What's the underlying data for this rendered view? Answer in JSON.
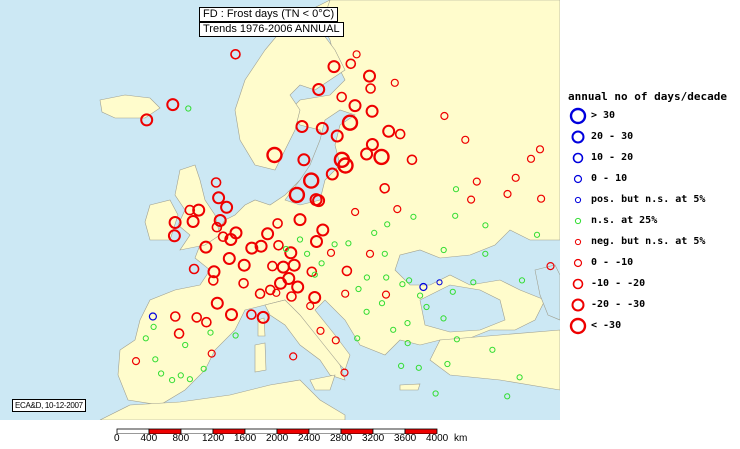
{
  "title": {
    "line1": "FD : Frost days (TN < 0°C)",
    "line2": "Trends 1976-2006 ANNUAL"
  },
  "credit": "ECA&D, 10-12-2007",
  "colors": {
    "sea": "#cce8f4",
    "land": "#fffccc",
    "border": "#b8b8a0",
    "positive": "#0000dd",
    "ns": "#33dd33",
    "negative": "#ee0000"
  },
  "legend": {
    "title": "annual no of days/decade",
    "items": [
      {
        "label": "> 30",
        "color": "#0000dd",
        "size": 6
      },
      {
        "label": "20 - 30",
        "color": "#0000dd",
        "size": 5
      },
      {
        "label": "10 - 20",
        "color": "#0000dd",
        "size": 4
      },
      {
        "label": "0 - 10",
        "color": "#0000dd",
        "size": 3
      },
      {
        "label": "pos. but n.s. at 5%",
        "color": "#0000dd",
        "size": 2
      },
      {
        "label": "n.s. at 25%",
        "color": "#33dd33",
        "size": 2
      },
      {
        "label": "neg. but n.s. at 5%",
        "color": "#ee0000",
        "size": 2
      },
      {
        "label": "0 - -10",
        "color": "#ee0000",
        "size": 3
      },
      {
        "label": "-10 - -20",
        "color": "#ee0000",
        "size": 4
      },
      {
        "label": "-20 - -30",
        "color": "#ee0000",
        "size": 5
      },
      {
        "label": "< -30",
        "color": "#ee0000",
        "size": 6
      }
    ]
  },
  "scale": {
    "labels": [
      "0",
      "400",
      "800",
      "1200",
      "1600",
      "2000",
      "2400",
      "2800",
      "3200",
      "3600",
      "4000"
    ],
    "unit": "km"
  },
  "stations": [
    [
      -21.9,
      64.1,
      9
    ],
    [
      -18.1,
      65.7,
      9
    ],
    [
      -14.3,
      65.3,
      6
    ],
    [
      -8,
      71,
      8
    ],
    [
      -6.3,
      53.4,
      9
    ],
    [
      -8.5,
      51.9,
      9
    ],
    [
      -9,
      53.3,
      9
    ],
    [
      -7.3,
      54.6,
      8
    ],
    [
      -3.2,
      55.9,
      9
    ],
    [
      -4.2,
      57.5,
      8
    ],
    [
      -1.6,
      54.9,
      9
    ],
    [
      -2.2,
      53.5,
      9
    ],
    [
      -0.1,
      51.5,
      9
    ],
    [
      -3.5,
      50.7,
      9
    ],
    [
      -1.3,
      51.8,
      8
    ],
    [
      0.5,
      52.2,
      9
    ],
    [
      -5.9,
      54.6,
      9
    ],
    [
      -2.5,
      52.8,
      8
    ],
    [
      2.3,
      48.8,
      9
    ],
    [
      -1.7,
      48.1,
      9
    ],
    [
      -4.5,
      48.4,
      8
    ],
    [
      0.1,
      49.5,
      9
    ],
    [
      4.8,
      45.8,
      8
    ],
    [
      5.4,
      43.3,
      9
    ],
    [
      1.4,
      43.6,
      9
    ],
    [
      -0.6,
      44.8,
      9
    ],
    [
      3.1,
      50.6,
      9
    ],
    [
      7.7,
      48.6,
      9
    ],
    [
      6.2,
      48.7,
      8
    ],
    [
      2.5,
      46.9,
      8
    ],
    [
      -1.6,
      47.2,
      8
    ],
    [
      6.9,
      45.9,
      7
    ],
    [
      3.9,
      43.6,
      8
    ],
    [
      4.4,
      50.8,
      9
    ],
    [
      5.2,
      52.1,
      9
    ],
    [
      6.6,
      53.2,
      8
    ],
    [
      8.7,
      50.1,
      9
    ],
    [
      13.4,
      52.5,
      9
    ],
    [
      10,
      53.6,
      9
    ],
    [
      11.6,
      48.1,
      8
    ],
    [
      9.2,
      48.8,
      9
    ],
    [
      6.9,
      50.9,
      8
    ],
    [
      12.4,
      51.3,
      9
    ],
    [
      14.4,
      50.1,
      7
    ],
    [
      16.4,
      48.2,
      8
    ],
    [
      12,
      47.8,
      6
    ],
    [
      10,
      51.5,
      6
    ],
    [
      8,
      50.5,
      6
    ],
    [
      11,
      50,
      6
    ],
    [
      15,
      51,
      6
    ],
    [
      13,
      49,
      6
    ],
    [
      8.5,
      47.4,
      9
    ],
    [
      7.4,
      46.9,
      9
    ],
    [
      6.1,
      46.2,
      8
    ],
    [
      9.7,
      46.5,
      9
    ],
    [
      8.9,
      45.5,
      8
    ],
    [
      11.3,
      44.5,
      7
    ],
    [
      12.5,
      41.9,
      7
    ],
    [
      14.3,
      40.9,
      7
    ],
    [
      16.9,
      41.1,
      6
    ],
    [
      15.1,
      37.5,
      7
    ],
    [
      9.2,
      39.2,
      7
    ],
    [
      11.9,
      45.4,
      9
    ],
    [
      10.7,
      59.9,
      9
    ],
    [
      5.3,
      60.4,
      10
    ],
    [
      10.4,
      63.4,
      9
    ],
    [
      14.4,
      67.3,
      9
    ],
    [
      18.9,
      69.7,
      9
    ],
    [
      23.5,
      70,
      8
    ],
    [
      25.8,
      71,
      7
    ],
    [
      18.1,
      59.3,
      10
    ],
    [
      11.9,
      57.7,
      10
    ],
    [
      13,
      55.6,
      9
    ],
    [
      17.6,
      59.9,
      10
    ],
    [
      15.6,
      58.4,
      9
    ],
    [
      20.3,
      63.8,
      10
    ],
    [
      22.1,
      65.6,
      9
    ],
    [
      17.3,
      62.4,
      9
    ],
    [
      14.5,
      63.2,
      9
    ],
    [
      19.5,
      66.5,
      8
    ],
    [
      24.9,
      60.2,
      10
    ],
    [
      22.3,
      60.5,
      9
    ],
    [
      25.5,
      65,
      9
    ],
    [
      27.7,
      62.9,
      9
    ],
    [
      26.7,
      67.4,
      8
    ],
    [
      29.8,
      62.6,
      8
    ],
    [
      23.8,
      61.5,
      9
    ],
    [
      27.4,
      68.7,
      9
    ],
    [
      12.6,
      55.7,
      9
    ],
    [
      9.5,
      56.2,
      10
    ],
    [
      24.1,
      56.9,
      8
    ],
    [
      25.3,
      54.7,
      7
    ],
    [
      21,
      52.2,
      6
    ],
    [
      19.9,
      50,
      7
    ],
    [
      17,
      51.1,
      6
    ],
    [
      18.6,
      54.4,
      7
    ],
    [
      23.2,
      53.1,
      6
    ],
    [
      22,
      50,
      6
    ],
    [
      30.3,
      59.9,
      8
    ],
    [
      37.6,
      55.7,
      7
    ],
    [
      27.5,
      53.9,
      6
    ],
    [
      30.5,
      50.4,
      6
    ],
    [
      39.7,
      47.2,
      6
    ],
    [
      36.2,
      50,
      6
    ],
    [
      33.1,
      47,
      6
    ],
    [
      44.5,
      48.7,
      7
    ],
    [
      40.5,
      64.5,
      7
    ],
    [
      33,
      68,
      7
    ],
    [
      49,
      55.8,
      7
    ],
    [
      45,
      52,
      6
    ],
    [
      50,
      53,
      7
    ],
    [
      40,
      57.6,
      7
    ],
    [
      44,
      56.3,
      7
    ],
    [
      35.9,
      56.8,
      6
    ],
    [
      47,
      58,
      7
    ],
    [
      52,
      60,
      7
    ],
    [
      55,
      61,
      7
    ],
    [
      42,
      62,
      7
    ],
    [
      60,
      58,
      7
    ],
    [
      58,
      52,
      7
    ],
    [
      38,
      53,
      6
    ],
    [
      34,
      54,
      6
    ],
    [
      30,
      46,
      6
    ],
    [
      19,
      47.5,
      6
    ],
    [
      21.6,
      47.5,
      6
    ],
    [
      26.1,
      44.4,
      6
    ],
    [
      23.6,
      46.8,
      6
    ],
    [
      20.5,
      44.8,
      6
    ],
    [
      23.3,
      42.7,
      6
    ],
    [
      27.9,
      43.2,
      6
    ],
    [
      28.6,
      47,
      4
    ],
    [
      24.6,
      47.2,
      6
    ],
    [
      21.2,
      45.7,
      7
    ],
    [
      25.6,
      45.6,
      6
    ],
    [
      26.3,
      46.5,
      3
    ],
    [
      18.4,
      43.9,
      6
    ],
    [
      15.9,
      45.8,
      7
    ],
    [
      17.7,
      46.3,
      6
    ],
    [
      21.4,
      42,
      6
    ],
    [
      23.7,
      38,
      6
    ],
    [
      22.9,
      40.6,
      6
    ],
    [
      25.1,
      35.3,
      6
    ],
    [
      21.7,
      38.2,
      6
    ],
    [
      28.9,
      41,
      6
    ],
    [
      32.8,
      39.9,
      6
    ],
    [
      27.1,
      38.4,
      6
    ],
    [
      35,
      37,
      6
    ],
    [
      33,
      35,
      6
    ],
    [
      -3.7,
      40.4,
      6
    ],
    [
      -8.6,
      41.1,
      6
    ],
    [
      -9.1,
      38.7,
      7
    ],
    [
      -5.9,
      37.4,
      6
    ],
    [
      2.2,
      41.4,
      6
    ],
    [
      -0.4,
      39.5,
      7
    ],
    [
      -4.5,
      36.7,
      6
    ],
    [
      -5.6,
      43.4,
      8
    ],
    [
      -2.9,
      43.3,
      8
    ],
    [
      -1.6,
      42.8,
      8
    ],
    [
      -4.7,
      41.6,
      8
    ],
    [
      -0.9,
      41.7,
      6
    ],
    [
      -6.9,
      38.9,
      6
    ],
    [
      -3.6,
      37.2,
      6
    ],
    [
      -8,
      42.3,
      6
    ],
    [
      -1.1,
      37.9,
      6
    ],
    [
      -2.5,
      36.8,
      6
    ],
    [
      -8.4,
      43.4,
      3
    ]
  ],
  "category_style": {
    "9": {
      "color": "#ee0000",
      "size": 5
    },
    "10": {
      "color": "#ee0000",
      "size": 6
    },
    "8": {
      "color": "#ee0000",
      "size": 4
    },
    "7": {
      "color": "#ee0000",
      "size": 3
    },
    "6": {
      "color": "#33dd33",
      "size": 2
    },
    "4": {
      "color": "#0000dd",
      "size": 2
    },
    "3": {
      "color": "#0000dd",
      "size": 3
    }
  }
}
